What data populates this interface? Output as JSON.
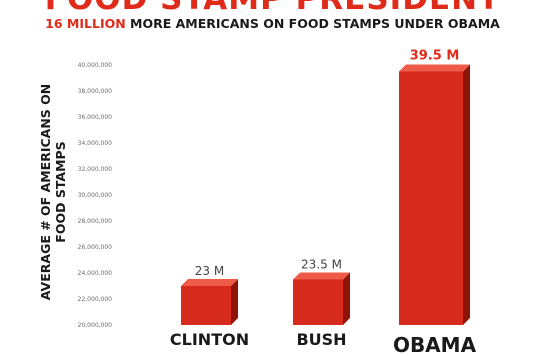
{
  "header": {
    "title": "FOOD STAMP PRESIDENT",
    "subtitle_highlight": "16 MILLION",
    "subtitle_rest": "MORE AMERICANS ON FOOD STAMPS UNDER OBAMA"
  },
  "colors": {
    "accent": "#e02a1a",
    "bar_front": "#d62b1c",
    "bar_side": "#8f1309",
    "bar_top": "#f05a48"
  },
  "chart_data": {
    "type": "bar",
    "title": "FOOD STAMP PRESIDENT",
    "ylabel": "AVERAGE # OF AMERICANS ON FOOD STAMPS",
    "xlabel": "",
    "categories": [
      "CLINTON",
      "BUSH",
      "OBAMA"
    ],
    "values": [
      23000000,
      23500000,
      39500000
    ],
    "data_labels": [
      "23 M",
      "23.5 M",
      "39.5 M"
    ],
    "highlight_index": 2,
    "ylim": [
      20000000,
      40000000
    ],
    "yticks": [
      40000000,
      38000000,
      36000000,
      34000000,
      32000000,
      30000000,
      28000000,
      26000000,
      24000000,
      22000000,
      20000000
    ],
    "ytick_labels": [
      "40,000,000",
      "38,000,000",
      "36,000,000",
      "34,000,000",
      "32,000,000",
      "30,000,000",
      "28,000,000",
      "26,000,000",
      "24,000,000",
      "22,000,000",
      "20,000,000"
    ],
    "grid": false,
    "legend": "none"
  }
}
